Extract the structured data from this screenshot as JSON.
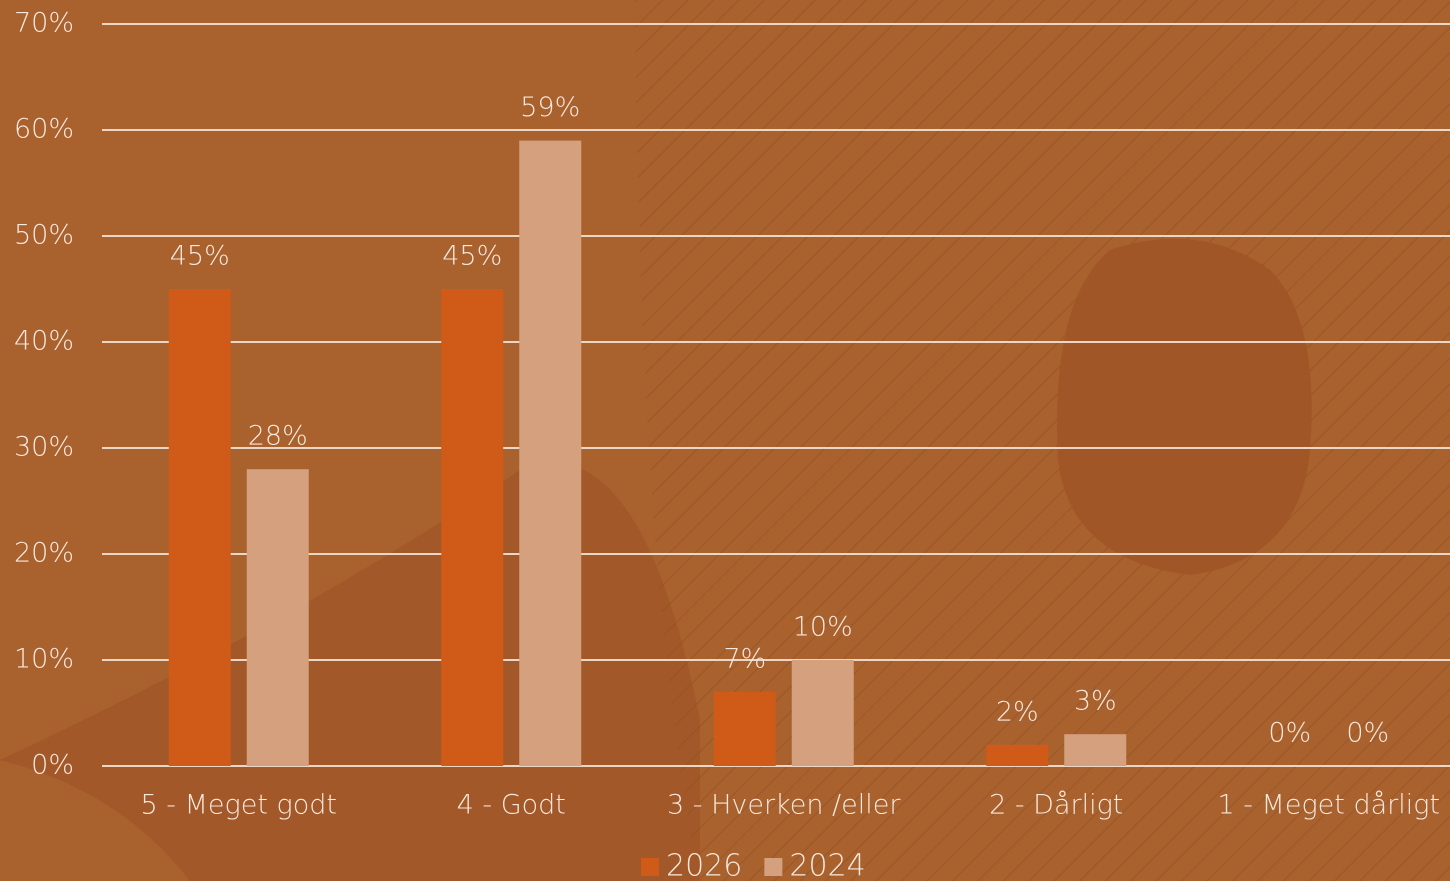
{
  "chart_data": {
    "type": "bar",
    "categories": [
      "5 - Meget godt",
      "4 - Godt",
      "3 - Hverken /eller",
      "2 - Dårligt",
      "1 - Meget dårligt"
    ],
    "series": [
      {
        "name": "2026",
        "color": "#d05a17",
        "values": [
          45,
          45,
          7,
          2,
          0
        ],
        "value_labels": [
          "45%",
          "45%",
          "7%",
          "2%",
          "0%"
        ]
      },
      {
        "name": "2024",
        "color": "#d4a07e",
        "values": [
          28,
          59,
          10,
          3,
          0
        ],
        "value_labels": [
          "28%",
          "59%",
          "10%",
          "3%",
          "0%"
        ]
      }
    ],
    "ylim": [
      0,
      70
    ],
    "yticks": [
      {
        "value": 0,
        "label": "0%"
      },
      {
        "value": 10,
        "label": "10%"
      },
      {
        "value": 20,
        "label": "20%"
      },
      {
        "value": 30,
        "label": "30%"
      },
      {
        "value": 40,
        "label": "40%"
      },
      {
        "value": 50,
        "label": "50%"
      },
      {
        "value": 60,
        "label": "60%"
      },
      {
        "value": 70,
        "label": "70%"
      }
    ],
    "grid": true,
    "legend": "bottom"
  }
}
